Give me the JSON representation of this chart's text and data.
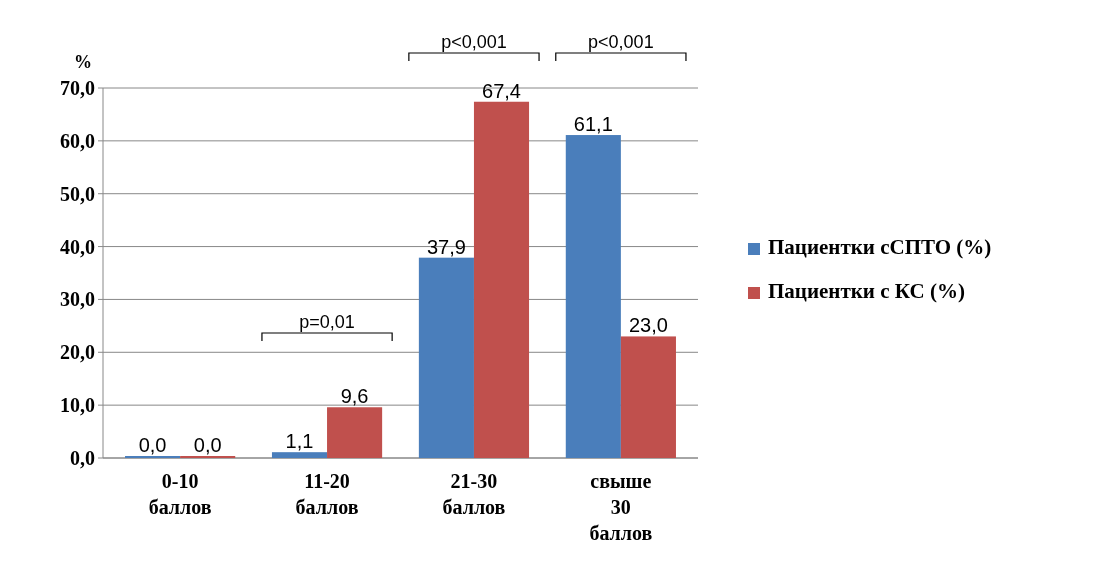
{
  "chart_data": {
    "type": "bar",
    "ylabel": "%",
    "categories": [
      "0-10 баллов",
      "11-20 баллов",
      "21-30 баллов",
      "свыше 30 баллов"
    ],
    "series": [
      {
        "name": "Пациентки сСПТО (%)",
        "color": "#4a7ebb",
        "values": [
          0.0,
          1.1,
          37.9,
          61.1
        ],
        "value_labels": [
          "0,0",
          "1,1",
          "37,9",
          "61,1"
        ]
      },
      {
        "name": "Пациентки с КС (%)",
        "color": "#c0504d",
        "values": [
          0.0,
          9.6,
          67.4,
          23.0
        ],
        "value_labels": [
          "0,0",
          "9,6",
          "67,4",
          "23,0"
        ]
      }
    ],
    "ylim": [
      0,
      70
    ],
    "yticks": [
      {
        "value": 0,
        "label": "0,0"
      },
      {
        "value": 10,
        "label": "10,0"
      },
      {
        "value": 20,
        "label": "20,0"
      },
      {
        "value": 30,
        "label": "30,0"
      },
      {
        "value": 40,
        "label": "40,0"
      },
      {
        "value": 50,
        "label": "50,0"
      },
      {
        "value": 60,
        "label": "60,0"
      },
      {
        "value": 70,
        "label": "70,0"
      }
    ],
    "grid": "y",
    "legend": "right",
    "annotations": [
      "p=0,01",
      "p<0,001",
      "p<0,001"
    ]
  }
}
